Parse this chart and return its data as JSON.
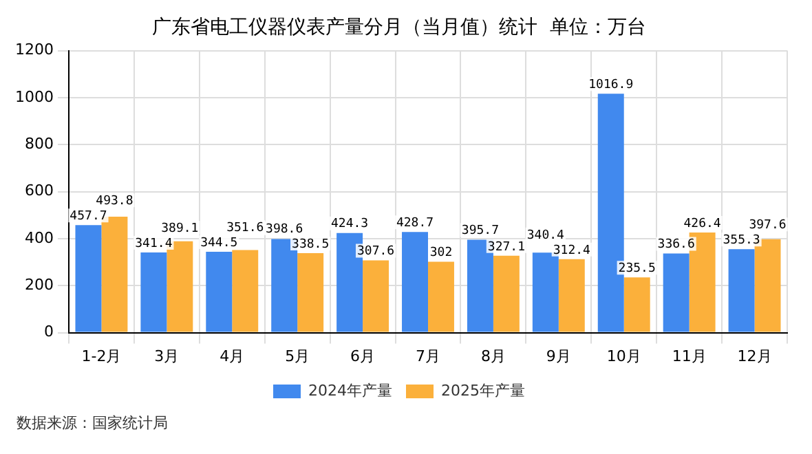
{
  "chart_data": {
    "type": "bar",
    "title": "广东省电工仪器仪表产量分月（当月值）统计  单位：万台",
    "categories": [
      "1-2月",
      "3月",
      "4月",
      "5月",
      "6月",
      "7月",
      "8月",
      "9月",
      "10月",
      "11月",
      "12月"
    ],
    "series": [
      {
        "name": "2024年产量",
        "color": "#4189ee",
        "values": [
          457.7,
          341.4,
          344.5,
          398.6,
          424.3,
          428.7,
          395.7,
          340.4,
          1016.9,
          336.6,
          355.3
        ]
      },
      {
        "name": "2025年产量",
        "color": "#fbb03b",
        "values": [
          493.8,
          389.1,
          351.6,
          338.5,
          307.6,
          302,
          327.1,
          312.4,
          235.5,
          426.4,
          397.6
        ]
      }
    ],
    "ylim": [
      0,
      1200
    ],
    "yticks": [
      0,
      200,
      400,
      600,
      800,
      1000,
      1200
    ],
    "grid": true,
    "legend": "bottom",
    "data_labels": true,
    "annotations": [
      "数据来源：国家统计局"
    ]
  }
}
